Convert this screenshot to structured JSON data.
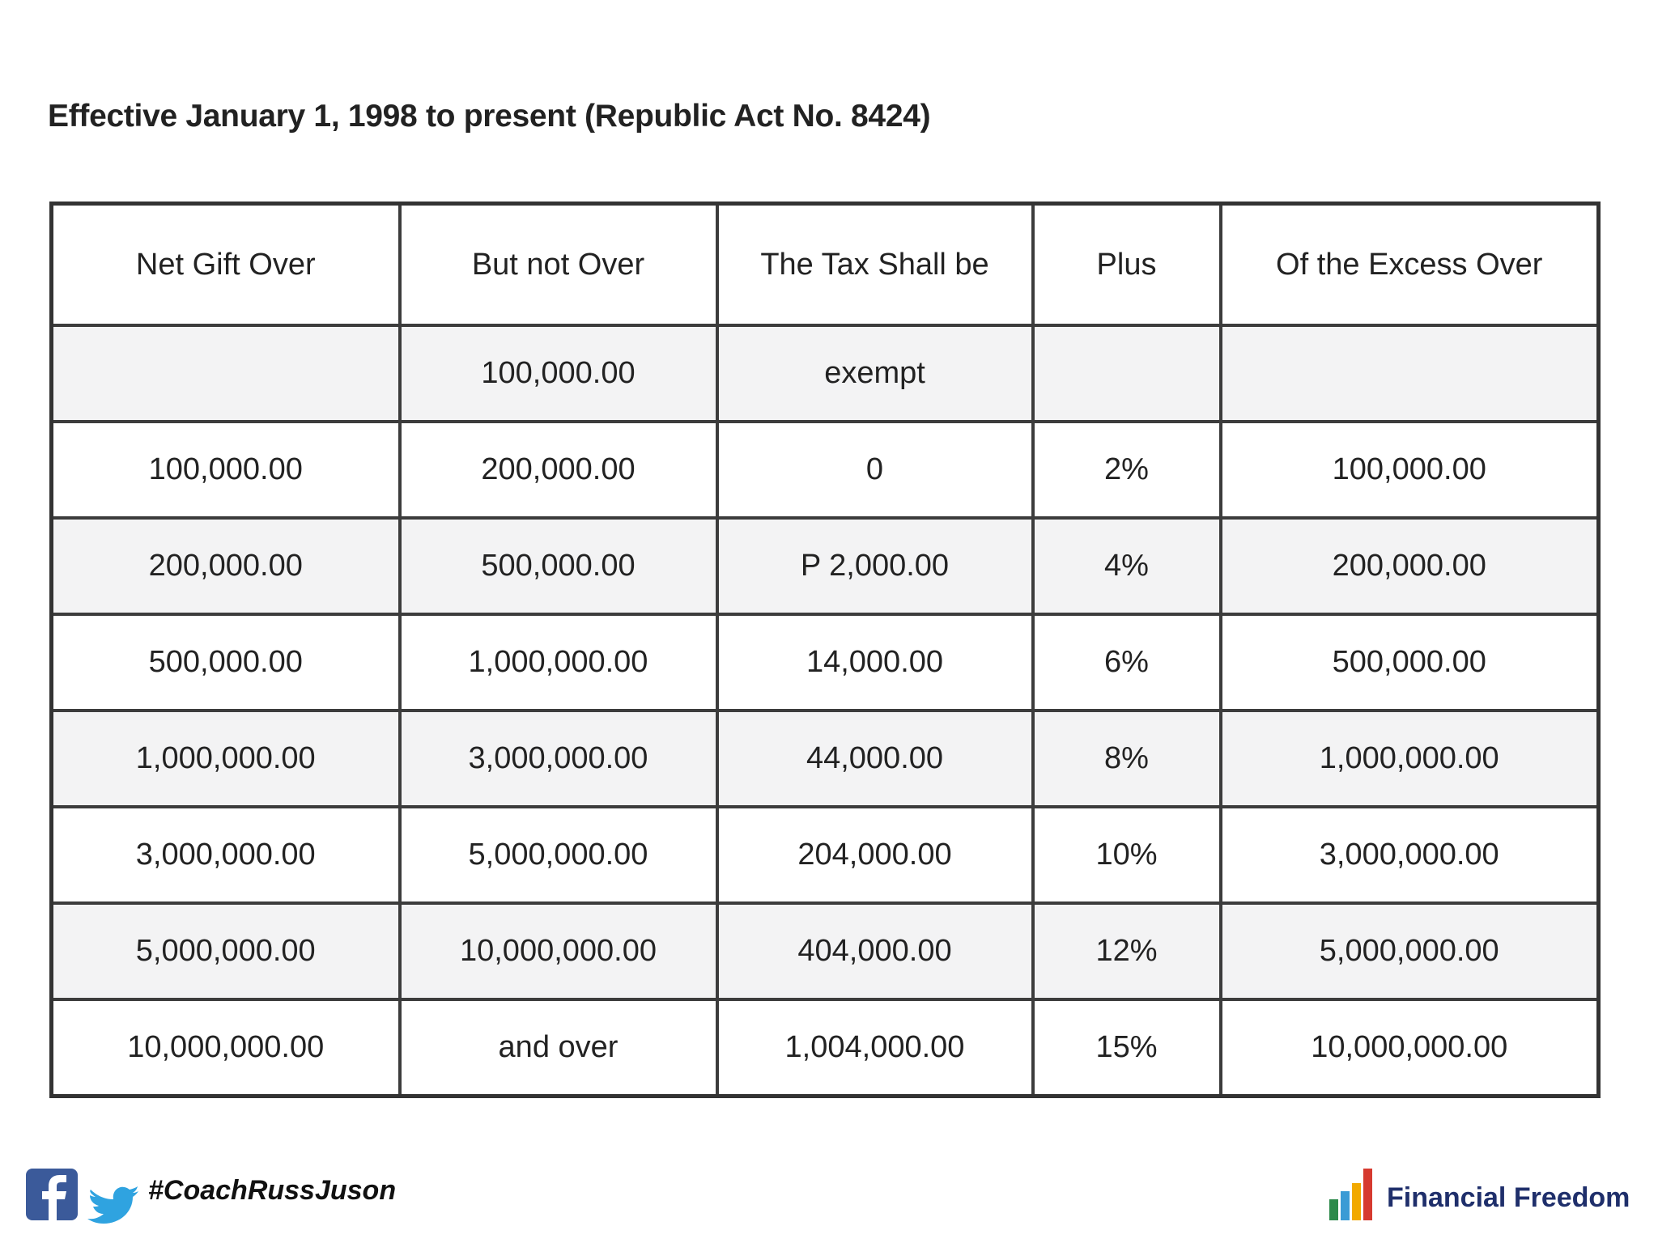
{
  "title": "Effective January 1, 1998 to present (Republic Act No. 8424)",
  "table": {
    "header": [
      "Net Gift Over",
      "But not Over",
      "The Tax Shall be",
      "Plus",
      "Of the Excess Over"
    ],
    "rows": [
      [
        null,
        "100,000.00",
        "exempt",
        null,
        null
      ],
      [
        "100,000.00",
        "200,000.00",
        "0",
        "2%",
        "100,000.00"
      ],
      [
        "200,000.00",
        "500,000.00",
        "P 2,000.00",
        "4%",
        "200,000.00"
      ],
      [
        "500,000.00",
        "1,000,000.00",
        "14,000.00",
        "6%",
        "500,000.00"
      ],
      [
        "1,000,000.00",
        "3,000,000.00",
        "44,000.00",
        "8%",
        "1,000,000.00"
      ],
      [
        "3,000,000.00",
        "5,000,000.00",
        "204,000.00",
        "10%",
        "3,000,000.00"
      ],
      [
        "5,000,000.00",
        "10,000,000.00",
        "404,000.00",
        "12%",
        "5,000,000.00"
      ],
      [
        "10,000,000.00",
        "and over",
        "1,004,000.00",
        "15%",
        "10,000,000.00"
      ]
    ]
  },
  "footer": {
    "hashtag": "#CoachRussJuson",
    "brand": "Financial Freedom"
  }
}
